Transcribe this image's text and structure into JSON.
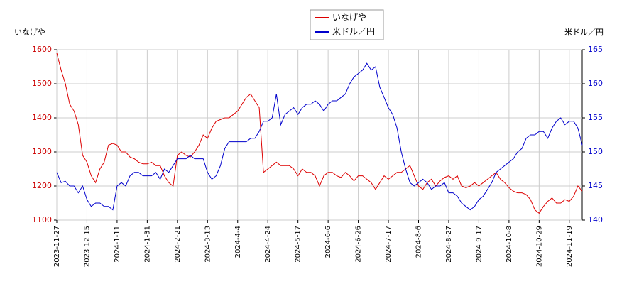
{
  "chart_data": {
    "type": "line",
    "y_label": "いなげや",
    "y2_label": "米ドル／円",
    "categories": [
      "2023-11-27",
      null,
      null,
      null,
      null,
      null,
      null,
      "2023-12-15",
      null,
      null,
      null,
      null,
      null,
      null,
      "2024-1-11",
      null,
      null,
      null,
      null,
      null,
      null,
      "2024-1-31",
      null,
      null,
      null,
      null,
      null,
      null,
      "2024-2-21",
      null,
      null,
      null,
      null,
      null,
      null,
      "2024-3-13",
      null,
      null,
      null,
      null,
      null,
      null,
      "2024-4-4",
      null,
      null,
      null,
      null,
      null,
      null,
      "2024-4-24",
      null,
      null,
      null,
      null,
      null,
      null,
      "2024-5-17",
      null,
      null,
      null,
      null,
      null,
      null,
      "2024-6-6",
      null,
      null,
      null,
      null,
      null,
      null,
      "2024-6-26",
      null,
      null,
      null,
      null,
      null,
      null,
      "2024-7-17",
      null,
      null,
      null,
      null,
      null,
      null,
      "2024-8-6",
      null,
      null,
      null,
      null,
      null,
      null,
      "2024-8-27",
      null,
      null,
      null,
      null,
      null,
      null,
      "2024-9-17",
      null,
      null,
      null,
      null,
      null,
      null,
      "2024-10-8",
      null,
      null,
      null,
      null,
      null,
      null,
      "2024-10-29",
      null,
      null,
      null,
      null,
      null,
      null,
      "2024-11-19",
      null,
      null,
      null
    ],
    "series": [
      {
        "name": "いなげや",
        "color": "#dd0000",
        "axis": "y",
        "values": [
          1590,
          1540,
          1500,
          1440,
          1420,
          1380,
          1290,
          1270,
          1230,
          1210,
          1250,
          1270,
          1320,
          1325,
          1320,
          1300,
          1300,
          1285,
          1280,
          1270,
          1265,
          1265,
          1270,
          1260,
          1260,
          1230,
          1210,
          1200,
          1290,
          1300,
          1290,
          1285,
          1300,
          1320,
          1350,
          1340,
          1370,
          1390,
          1395,
          1400,
          1400,
          1410,
          1420,
          1440,
          1460,
          1470,
          1450,
          1430,
          1240,
          1250,
          1260,
          1270,
          1260,
          1260,
          1260,
          1250,
          1230,
          1250,
          1240,
          1240,
          1230,
          1200,
          1230,
          1240,
          1240,
          1230,
          1225,
          1240,
          1230,
          1215,
          1230,
          1230,
          1220,
          1210,
          1190,
          1210,
          1230,
          1220,
          1230,
          1240,
          1240,
          1250,
          1260,
          1230,
          1200,
          1190,
          1210,
          1220,
          1200,
          1215,
          1225,
          1230,
          1220,
          1230,
          1200,
          1195,
          1200,
          1210,
          1200,
          1210,
          1220,
          1230,
          1240,
          1220,
          1210,
          1195,
          1185,
          1180,
          1180,
          1175,
          1160,
          1130,
          1120,
          1140,
          1155,
          1165,
          1150,
          1150,
          1160,
          1155,
          1170,
          1200,
          1185
        ]
      },
      {
        "name": "米ドル／円",
        "color": "#0000cc",
        "axis": "y2",
        "values": [
          147,
          145.5,
          145.7,
          145,
          145,
          144,
          145,
          143,
          142,
          142.5,
          142.5,
          142,
          142,
          141.5,
          145,
          145.5,
          145,
          146.5,
          147,
          147,
          146.5,
          146.5,
          146.5,
          147,
          146,
          147.5,
          147,
          148,
          149,
          149,
          149,
          149.5,
          149,
          149,
          149,
          147,
          146,
          146.5,
          148,
          150.5,
          151.5,
          151.5,
          151.5,
          151.5,
          151.5,
          152,
          152,
          153,
          154.5,
          154.5,
          155,
          158.5,
          154,
          155.5,
          156,
          156.5,
          155.5,
          156.5,
          157,
          157,
          157.5,
          157,
          156,
          157,
          157.5,
          157.5,
          158,
          158.5,
          160,
          161,
          161.5,
          162,
          163,
          162,
          162.5,
          159.5,
          158,
          156.5,
          155.5,
          153.5,
          150,
          147.5,
          145.5,
          145,
          145.5,
          146,
          145.5,
          144.5,
          145,
          145,
          145.5,
          144,
          144,
          143.5,
          142.5,
          142,
          141.5,
          142,
          143,
          143.5,
          144.5,
          145.5,
          147,
          147.5,
          148,
          148.5,
          149,
          150,
          150.5,
          152,
          152.5,
          152.5,
          153,
          153,
          152,
          153.5,
          154.5,
          155,
          154,
          154.5,
          154.5,
          153.5,
          151
        ]
      }
    ],
    "ylim": [
      1100,
      1600
    ],
    "yticks": [
      1100,
      1200,
      1300,
      1400,
      1500,
      1600
    ],
    "y2lim": [
      140,
      165
    ],
    "y2ticks": [
      140,
      145,
      150,
      155,
      160,
      165
    ],
    "grid": true,
    "legend": "top"
  }
}
